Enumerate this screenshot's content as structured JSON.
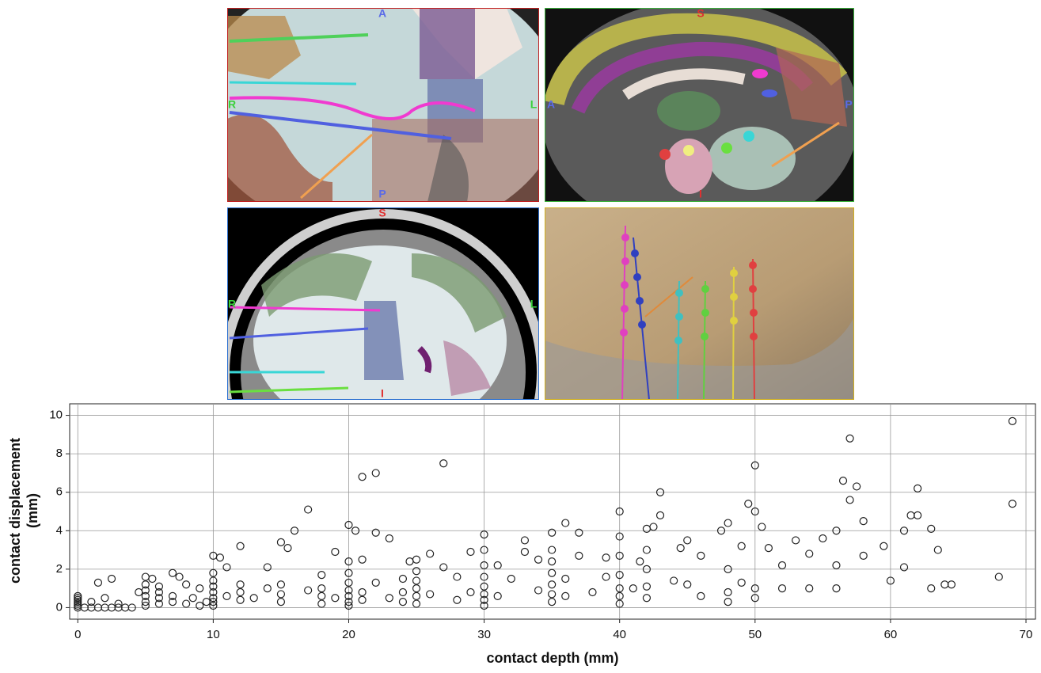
{
  "panels": [
    {
      "labels": [
        "A",
        "R",
        "L",
        "P"
      ]
    },
    {
      "labels": [
        "S",
        "A",
        "P",
        "I"
      ]
    },
    {
      "labels": [
        "S",
        "R",
        "L",
        "I"
      ]
    }
  ],
  "chart_data": {
    "type": "scatter",
    "x_label": "contact depth (mm)",
    "y_label": [
      "contact displacement",
      "(mm)"
    ],
    "color": "#222222",
    "grid": true,
    "xlim": [
      -0.6,
      70.7
    ],
    "ylim": [
      -0.6,
      10.6
    ],
    "xticks": [
      0,
      10,
      20,
      30,
      40,
      50,
      60,
      70
    ],
    "yticks": [
      0,
      2,
      4,
      6,
      8,
      10
    ],
    "x": [
      0,
      0,
      0,
      0,
      0,
      0,
      0,
      0.5,
      1,
      1.5,
      2,
      2.5,
      3,
      3.5,
      4,
      1,
      1.5,
      2.5,
      2,
      3,
      4.5,
      5,
      5,
      5,
      5,
      5,
      5,
      5.5,
      6,
      6,
      6,
      6,
      7,
      7,
      7,
      7.5,
      8,
      8,
      8.5,
      9,
      9,
      9.5,
      10,
      10,
      10,
      10,
      10,
      10,
      10,
      10,
      10.5,
      11,
      11,
      12,
      12,
      12,
      12,
      13,
      14,
      14,
      15,
      15,
      15,
      15,
      15.5,
      16,
      17,
      17,
      18,
      18,
      18,
      18,
      19,
      19,
      20,
      20,
      20,
      20,
      20,
      20,
      20,
      20,
      20.5,
      21,
      21,
      21,
      21,
      22,
      22,
      22,
      23,
      23,
      24,
      24,
      24,
      24.5,
      25,
      25,
      25,
      25,
      25,
      25,
      26,
      26,
      27,
      27,
      28,
      28,
      29,
      29,
      30,
      30,
      30,
      30,
      30,
      30,
      30,
      30,
      31,
      31,
      32,
      33,
      33,
      34,
      34,
      35,
      35,
      35,
      35,
      35,
      35,
      35,
      36,
      36,
      36,
      37,
      37,
      38,
      39,
      39,
      40,
      40,
      40,
      40,
      40,
      40,
      40,
      41,
      41.5,
      42,
      42,
      42,
      42,
      42,
      42.5,
      43,
      43,
      44,
      44.5,
      45,
      45,
      46,
      46,
      47.5,
      48,
      48,
      48,
      48,
      49,
      49,
      50,
      50,
      49.5,
      50,
      50,
      50.5,
      51,
      52,
      52,
      53,
      54,
      54,
      55,
      56,
      56,
      56,
      56.5,
      57,
      57,
      57.5,
      58,
      58,
      59.5,
      60,
      61,
      61,
      61.5,
      62,
      62,
      63,
      63,
      63.5,
      64,
      64.5,
      68,
      69,
      69
    ],
    "values": [
      0,
      0.1,
      0.2,
      0.3,
      0.4,
      0.5,
      0.6,
      0,
      0,
      0,
      0,
      0,
      0,
      0,
      0,
      0.3,
      1.3,
      1.5,
      0.5,
      0.2,
      0.8,
      0.1,
      0.3,
      0.6,
      0.9,
      1.2,
      1.6,
      1.5,
      0.2,
      0.5,
      0.8,
      1.1,
      0.3,
      0.6,
      1.8,
      1.6,
      0.2,
      1.2,
      0.5,
      0.1,
      1.0,
      0.3,
      0.1,
      0.3,
      0.5,
      0.8,
      1.1,
      1.4,
      1.8,
      2.7,
      2.6,
      2.1,
      0.6,
      0.4,
      0.8,
      1.2,
      3.2,
      0.5,
      1.0,
      2.1,
      0.3,
      0.7,
      1.2,
      3.4,
      3.1,
      4.0,
      5.1,
      0.9,
      0.2,
      0.6,
      1.0,
      1.7,
      2.9,
      0.5,
      0.1,
      0.3,
      0.6,
      0.9,
      1.3,
      1.8,
      2.4,
      4.3,
      4.0,
      0.4,
      0.8,
      2.5,
      6.8,
      7.0,
      3.9,
      1.3,
      0.5,
      3.6,
      0.3,
      0.8,
      1.5,
      2.4,
      0.2,
      0.6,
      1.0,
      1.4,
      1.9,
      2.5,
      2.8,
      0.7,
      7.5,
      2.1,
      0.4,
      1.6,
      2.9,
      0.8,
      0.1,
      0.4,
      0.7,
      1.1,
      1.6,
      2.2,
      3.0,
      3.8,
      2.2,
      0.6,
      1.5,
      2.9,
      3.5,
      0.9,
      2.5,
      0.3,
      0.7,
      1.2,
      1.8,
      2.4,
      3.0,
      3.9,
      4.4,
      1.5,
      0.6,
      3.9,
      2.7,
      0.8,
      1.6,
      2.6,
      0.2,
      0.6,
      1.0,
      1.7,
      2.7,
      3.7,
      5.0,
      1.0,
      2.4,
      0.5,
      1.1,
      2.0,
      3.0,
      4.1,
      4.2,
      4.8,
      6.0,
      1.4,
      3.1,
      3.5,
      1.2,
      2.7,
      0.6,
      4.0,
      4.4,
      0.3,
      0.8,
      2.0,
      3.2,
      1.3,
      7.4,
      5.0,
      5.4,
      1.0,
      0.5,
      4.2,
      3.1,
      2.2,
      1.0,
      3.5,
      2.8,
      1.0,
      3.6,
      4.0,
      2.2,
      1.0,
      6.6,
      5.6,
      8.8,
      6.3,
      4.5,
      2.7,
      3.2,
      1.4,
      4.0,
      2.1,
      4.8,
      6.2,
      4.8,
      4.1,
      1.0,
      3.0,
      1.2,
      1.2,
      1.6,
      9.7,
      5.4
    ]
  }
}
